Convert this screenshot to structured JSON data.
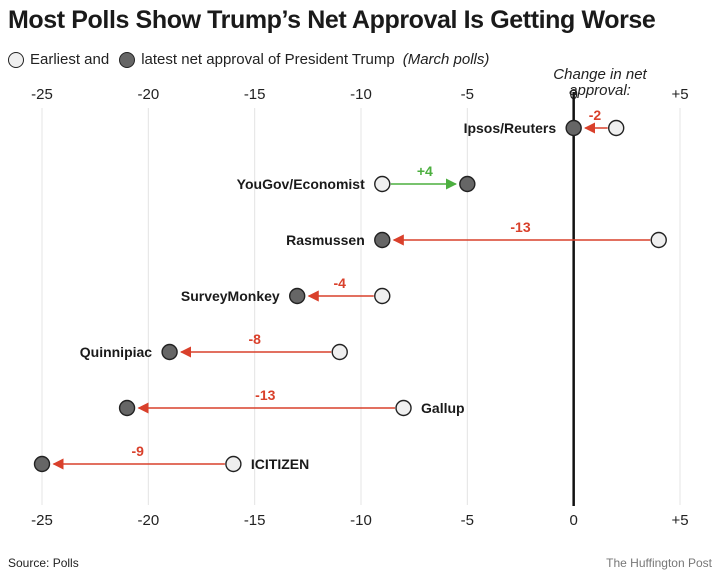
{
  "title": "Most Polls Show Trump’s Net Approval Is Getting Worse",
  "legend": {
    "earliest_label": "Earliest and",
    "latest_label": "latest net approval of President Trump",
    "note": "(March polls)"
  },
  "source": "Source: Polls",
  "credit": "The Huffington Post",
  "colors": {
    "negative": "#d9402b",
    "positive": "#4caf3f",
    "earliest_fill": "#efefef",
    "latest_fill": "#666666"
  },
  "chart_data": {
    "type": "dumbbell",
    "title": "Most Polls Show Trump’s Net Approval Is Getting Worse",
    "change_label_line1": "Change in net",
    "change_label_line2": "approval:",
    "xlim": [
      -25,
      5
    ],
    "ticks": [
      -25,
      -20,
      -15,
      -10,
      -5,
      0,
      5
    ],
    "tick_labels": [
      "-25",
      "-20",
      "-15",
      "-10",
      "-5",
      "0",
      "+5"
    ],
    "grid": true,
    "polls": [
      {
        "name": "Ipsos/Reuters",
        "earliest": 2,
        "latest": 0,
        "change": "-2"
      },
      {
        "name": "YouGov/Economist",
        "earliest": -9,
        "latest": -5,
        "change": "+4"
      },
      {
        "name": "Rasmussen",
        "earliest": 4,
        "latest": -9,
        "change": "-13"
      },
      {
        "name": "SurveyMonkey",
        "earliest": -9,
        "latest": -13,
        "change": "-4"
      },
      {
        "name": "Quinnipiac",
        "earliest": -11,
        "latest": -19,
        "change": "-8"
      },
      {
        "name": "Gallup",
        "earliest": -8,
        "latest": -21,
        "change": "-13"
      },
      {
        "name": "ICITIZEN",
        "earliest": -16,
        "latest": -25,
        "change": "-9"
      }
    ]
  }
}
